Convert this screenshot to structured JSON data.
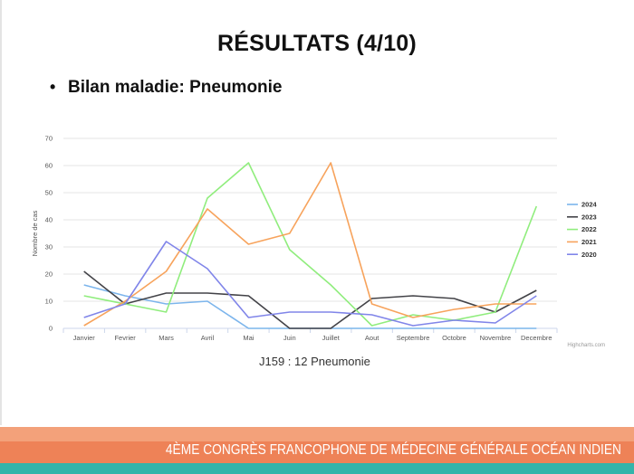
{
  "slide": {
    "title": "RÉSULTATS (4/10)",
    "bullet_symbol": "•",
    "bullet_text": "Bilan maladie: Pneumonie",
    "caption": "J159 : 12 Pneumonie",
    "footer": "4ÈME CONGRÈS FRANCOPHONE DE MÉDECINE GÉNÉRALE OCÉAN INDIEN"
  },
  "chart_data": {
    "type": "line",
    "title": "",
    "xlabel": "",
    "ylabel": "Nombre de cas",
    "ylim": [
      0,
      70
    ],
    "yticks": [
      0,
      10,
      20,
      30,
      40,
      50,
      60,
      70
    ],
    "grid": true,
    "legend_position": "right",
    "credit": "Highcharts.com",
    "categories": [
      "Janvier",
      "Fevrier",
      "Mars",
      "Avril",
      "Mai",
      "Juin",
      "Juillet",
      "Aout",
      "Septembre",
      "Octobre",
      "Novembre",
      "Decembre"
    ],
    "series": [
      {
        "name": "2024",
        "color": "#7cb5ec",
        "values": [
          16,
          12,
          9,
          10,
          0,
          0,
          0,
          0,
          0,
          0,
          0,
          0
        ]
      },
      {
        "name": "2023",
        "color": "#434348",
        "values": [
          21,
          9,
          13,
          13,
          12,
          0,
          0,
          11,
          12,
          11,
          6,
          14
        ]
      },
      {
        "name": "2022",
        "color": "#90ed7d",
        "values": [
          12,
          9,
          6,
          48,
          61,
          29,
          16,
          1,
          5,
          3,
          6,
          45
        ]
      },
      {
        "name": "2021",
        "color": "#f7a35c",
        "values": [
          1,
          10,
          21,
          44,
          31,
          35,
          61,
          9,
          4,
          7,
          9,
          9
        ]
      },
      {
        "name": "2020",
        "color": "#8085e9",
        "values": [
          4,
          9,
          32,
          22,
          4,
          6,
          6,
          5,
          1,
          3,
          2,
          12
        ]
      }
    ]
  }
}
